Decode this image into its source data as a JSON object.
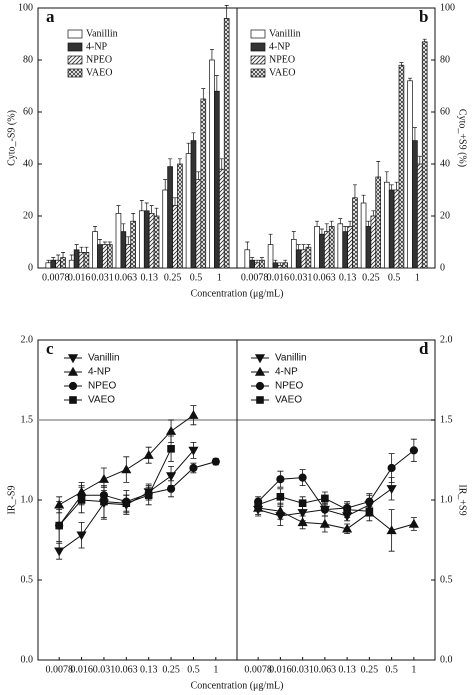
{
  "chart_data": [
    {
      "type": "bar",
      "label": "a",
      "ylabel": "Cyto_-S9 (%)",
      "xlabel": "Concentration (μg/mL)",
      "categories": [
        "0.0078",
        "0.016",
        "0.031",
        "0.063",
        "0.13",
        "0.25",
        "0.5",
        "1"
      ],
      "ylim": [
        0,
        100
      ],
      "yticks": [
        0,
        20,
        40,
        60,
        80,
        100
      ],
      "axis_side": "left",
      "series": [
        {
          "name": "Vanillin",
          "color": "#ffffff",
          "pattern": "solid",
          "values": [
            2,
            3,
            14,
            21,
            22,
            30,
            44,
            80
          ],
          "errors": [
            1,
            2,
            2,
            3,
            4,
            4,
            4,
            4
          ]
        },
        {
          "name": "4-NP",
          "color": "#333333",
          "pattern": "solid",
          "values": [
            3,
            7,
            9,
            14,
            22,
            39,
            49,
            68
          ],
          "errors": [
            1,
            2,
            2,
            3,
            3,
            3,
            3,
            6
          ]
        },
        {
          "name": "NPEO",
          "color": "#333333",
          "pattern": "diagonal",
          "values": [
            3,
            6,
            9,
            9,
            21,
            24,
            34,
            38
          ],
          "errors": [
            2,
            2,
            1,
            3,
            3,
            3,
            3,
            4
          ]
        },
        {
          "name": "VAEO",
          "color": "#333333",
          "pattern": "cross",
          "values": [
            4,
            6,
            9,
            18,
            20,
            40,
            65,
            96
          ],
          "errors": [
            2,
            2,
            1,
            3,
            3,
            2,
            4,
            5
          ]
        }
      ]
    },
    {
      "type": "bar",
      "label": "b",
      "ylabel": "Cyto_+S9 (%)",
      "categories": [
        "0.0078",
        "0.016",
        "0.031",
        "0.063",
        "0.13",
        "0.25",
        "0.5",
        "1"
      ],
      "ylim": [
        0,
        100
      ],
      "yticks": [
        0,
        20,
        40,
        60,
        80,
        100
      ],
      "axis_side": "right",
      "series": [
        {
          "name": "Vanillin",
          "color": "#ffffff",
          "pattern": "solid",
          "values": [
            7,
            9,
            11,
            16,
            17,
            25,
            33,
            72
          ],
          "errors": [
            3,
            4,
            3,
            2,
            2,
            3,
            4,
            1
          ]
        },
        {
          "name": "4-NP",
          "color": "#333333",
          "pattern": "solid",
          "values": [
            3,
            2,
            7,
            13,
            14,
            16,
            30,
            49
          ],
          "errors": [
            1,
            1,
            2,
            2,
            2,
            2,
            2,
            5
          ]
        },
        {
          "name": "NPEO",
          "color": "#333333",
          "pattern": "diagonal",
          "values": [
            2,
            1,
            7,
            14,
            16,
            20,
            30,
            40
          ],
          "errors": [
            1,
            1,
            2,
            3,
            2,
            2,
            3,
            3
          ]
        },
        {
          "name": "VAEO",
          "color": "#333333",
          "pattern": "cross",
          "values": [
            3,
            2,
            8,
            16,
            27,
            35,
            78,
            87
          ],
          "errors": [
            1,
            1,
            1,
            2,
            5,
            6,
            1,
            1
          ]
        }
      ]
    },
    {
      "type": "line",
      "label": "c",
      "ylabel": "IR_-S9",
      "xlabel": "Concentration (μg/mL)",
      "categories": [
        "0.0078",
        "0.016",
        "0.031",
        "0.063",
        "0.13",
        "0.25",
        "0.5",
        "1"
      ],
      "ylim": [
        0,
        2
      ],
      "yticks": [
        {
          "value": 0,
          "label": "0.0"
        },
        {
          "value": 0.5,
          "label": "0.5"
        },
        {
          "value": 1,
          "label": "1.0"
        },
        {
          "value": 1.5,
          "label": "1.5"
        },
        {
          "value": 2,
          "label": "2.0"
        }
      ],
      "axis_side": "left",
      "reference_line": 1.5,
      "series": [
        {
          "name": "Vanillin",
          "color": "#111111",
          "marker": "triangle-down",
          "values": [
            0.68,
            0.78,
            0.98,
            0.97,
            1.05,
            1.15,
            1.31,
            null
          ],
          "errors": [
            0.05,
            0.08,
            0.1,
            0.06,
            0.05,
            0.06,
            0.05,
            null
          ]
        },
        {
          "name": "4-NP",
          "color": "#111111",
          "marker": "triangle-up",
          "values": [
            0.97,
            1.05,
            1.13,
            1.19,
            1.28,
            1.43,
            1.53,
            null
          ],
          "errors": [
            0.05,
            0.06,
            0.07,
            0.08,
            0.05,
            0.07,
            0.06,
            null
          ]
        },
        {
          "name": "NPEO",
          "color": "#111111",
          "marker": "circle",
          "values": [
            0.84,
            1.03,
            1.03,
            0.99,
            1.04,
            1.07,
            1.2,
            1.24
          ],
          "errors": [
            0.15,
            0.06,
            0.05,
            0.07,
            0.04,
            0.05,
            0.03,
            0.02
          ]
        },
        {
          "name": "VAEO",
          "color": "#111111",
          "marker": "square",
          "values": [
            0.84,
            1.0,
            0.99,
            0.98,
            1.03,
            1.32,
            null,
            null
          ],
          "errors": [
            0.1,
            0.08,
            0.1,
            0.05,
            0.06,
            0.08,
            null,
            null
          ]
        }
      ]
    },
    {
      "type": "line",
      "label": "d",
      "ylabel": "IR_+S9",
      "categories": [
        "0.0078",
        "0.016",
        "0.031",
        "0.063",
        "0.13",
        "0.25",
        "0.5",
        "1"
      ],
      "ylim": [
        0,
        2
      ],
      "yticks": [
        {
          "value": 0,
          "label": "0.0"
        },
        {
          "value": 0.5,
          "label": "0.5"
        },
        {
          "value": 1,
          "label": "1.0"
        },
        {
          "value": 1.5,
          "label": "1.5"
        },
        {
          "value": 2,
          "label": "2.0"
        }
      ],
      "axis_side": "right",
      "series": [
        {
          "name": "Vanillin",
          "color": "#111111",
          "marker": "triangle-down",
          "values": [
            0.94,
            0.9,
            0.92,
            0.94,
            0.9,
            0.97,
            1.07,
            null
          ],
          "errors": [
            0.04,
            0.06,
            0.05,
            0.04,
            0.03,
            0.06,
            0.07,
            null
          ]
        },
        {
          "name": "4-NP",
          "color": "#111111",
          "marker": "triangle-up",
          "values": [
            0.95,
            0.93,
            0.86,
            0.85,
            0.82,
            0.92,
            0.81,
            0.85
          ],
          "errors": [
            0.04,
            0.05,
            0.04,
            0.05,
            0.03,
            0.05,
            0.13,
            0.04
          ]
        },
        {
          "name": "NPEO",
          "color": "#111111",
          "marker": "circle",
          "values": [
            0.99,
            1.13,
            1.14,
            0.94,
            0.95,
            0.99,
            1.2,
            1.31
          ],
          "errors": [
            0.03,
            0.05,
            0.05,
            0.04,
            0.03,
            0.05,
            0.09,
            0.07
          ]
        },
        {
          "name": "VAEO",
          "color": "#111111",
          "marker": "square",
          "values": [
            0.97,
            1.02,
            0.98,
            1.01,
            0.94,
            0.93,
            null,
            null
          ],
          "errors": [
            0.03,
            0.05,
            0.04,
            0.04,
            0.05,
            0.03,
            null,
            null
          ]
        }
      ]
    }
  ]
}
